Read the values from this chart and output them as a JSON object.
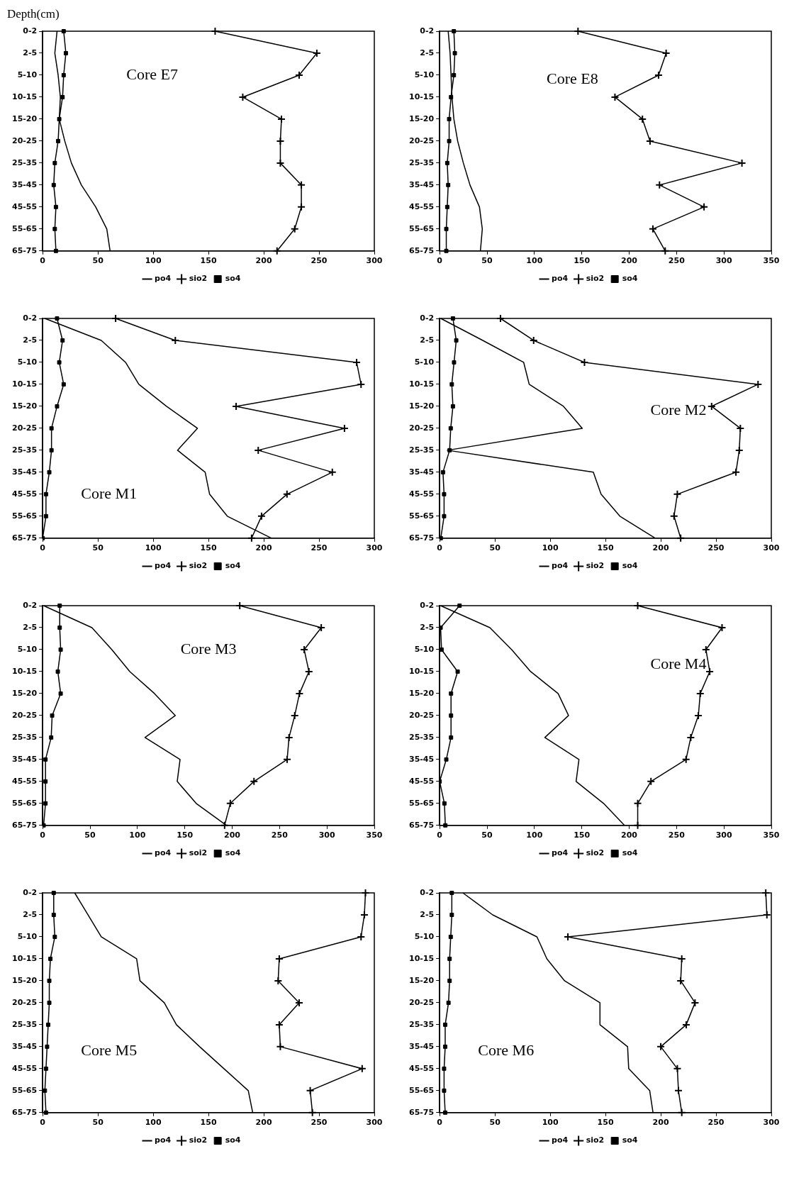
{
  "chart_data": [
    {
      "type": "line",
      "orientation": "horizontal",
      "title": "Core E7",
      "ylabel": "Depth(cm)",
      "categories": [
        "0-2",
        "2-5",
        "5-10",
        "10-15",
        "15-20",
        "20-25",
        "25-35",
        "35-45",
        "45-55",
        "55-65",
        "65-75"
      ],
      "xlim": [
        0,
        300
      ],
      "xticks": [
        0,
        50,
        100,
        150,
        200,
        250,
        300
      ],
      "grid": false,
      "legend": "bottom",
      "series": [
        {
          "name": "po4",
          "color": "#000000",
          "marker": "none",
          "values": [
            13,
            11,
            14,
            16,
            15,
            20,
            26,
            35,
            48,
            58,
            61
          ]
        },
        {
          "name": "sio2",
          "color": "#000000",
          "marker": "cross",
          "values": [
            156,
            248,
            232,
            181,
            216,
            215,
            215,
            234,
            234,
            228,
            212
          ]
        },
        {
          "name": "so4",
          "color": "#000000",
          "marker": "square",
          "values": [
            19,
            21,
            19,
            18,
            15,
            14,
            11,
            10,
            12,
            11,
            12
          ]
        }
      ]
    },
    {
      "type": "line",
      "orientation": "horizontal",
      "title": "Core E8",
      "categories": [
        "0-2",
        "2-5",
        "5-10",
        "10-15",
        "15-20",
        "20-25",
        "25-35",
        "35-45",
        "45-55",
        "55-65",
        "65-75"
      ],
      "xlim": [
        0,
        350
      ],
      "xticks": [
        0,
        50,
        100,
        150,
        200,
        250,
        300,
        350
      ],
      "grid": false,
      "legend": "bottom",
      "series": [
        {
          "name": "po4",
          "color": "#000000",
          "marker": "none",
          "values": [
            9,
            11,
            12,
            13,
            15,
            19,
            25,
            32,
            42,
            45,
            43
          ]
        },
        {
          "name": "sio2",
          "color": "#000000",
          "marker": "cross",
          "values": [
            146,
            239,
            231,
            185,
            214,
            222,
            319,
            232,
            279,
            225,
            238
          ]
        },
        {
          "name": "so4",
          "color": "#000000",
          "marker": "square",
          "values": [
            15,
            16,
            15,
            12,
            10,
            10,
            8,
            9,
            8,
            7,
            7
          ]
        }
      ]
    },
    {
      "type": "line",
      "orientation": "horizontal",
      "title": "Core M1",
      "categories": [
        "0-2",
        "2-5",
        "5-10",
        "10-15",
        "15-20",
        "20-25",
        "25-35",
        "35-45",
        "45-55",
        "55-65",
        "65-75"
      ],
      "xlim": [
        0,
        300
      ],
      "xticks": [
        0,
        50,
        100,
        150,
        200,
        250,
        300
      ],
      "grid": false,
      "legend": "bottom",
      "series": [
        {
          "name": "po4",
          "color": "#000000",
          "marker": "none",
          "values": [
            2,
            53,
            75,
            87,
            112,
            140,
            122,
            147,
            151,
            167,
            207
          ]
        },
        {
          "name": "sio2",
          "color": "#000000",
          "marker": "cross",
          "values": [
            66,
            120,
            284,
            288,
            175,
            273,
            195,
            262,
            221,
            198,
            189
          ]
        },
        {
          "name": "so4",
          "color": "#000000",
          "marker": "square",
          "values": [
            13,
            18,
            15,
            19,
            13,
            8,
            8,
            6,
            3,
            3,
            0
          ]
        }
      ]
    },
    {
      "type": "line",
      "orientation": "horizontal",
      "title": "Core M2",
      "categories": [
        "0-2",
        "2-5",
        "5-10",
        "10-15",
        "15-20",
        "20-25",
        "25-35",
        "35-45",
        "45-55",
        "55-65",
        "65-75"
      ],
      "xlim": [
        0,
        300
      ],
      "xticks": [
        0,
        50,
        100,
        150,
        200,
        250,
        300
      ],
      "grid": false,
      "legend": "bottom",
      "series": [
        {
          "name": "po4",
          "color": "#000000",
          "marker": "none",
          "values": [
            1,
            39,
            76,
            81,
            112,
            129,
            7,
            139,
            146,
            163,
            195
          ]
        },
        {
          "name": "sio2",
          "color": "#000000",
          "marker": "cross",
          "values": [
            55,
            85,
            131,
            288,
            246,
            272,
            271,
            268,
            215,
            212,
            218
          ]
        },
        {
          "name": "so4",
          "color": "#000000",
          "marker": "square",
          "values": [
            12,
            15,
            13,
            11,
            12,
            10,
            9,
            3,
            4,
            4,
            1
          ]
        }
      ]
    },
    {
      "type": "line",
      "orientation": "horizontal",
      "title": "Core M3",
      "categories": [
        "0-2",
        "2-5",
        "5-10",
        "10-15",
        "15-20",
        "20-25",
        "25-35",
        "35-45",
        "45-55",
        "55-65",
        "65-75"
      ],
      "xlim": [
        0,
        350
      ],
      "xticks": [
        0,
        50,
        100,
        150,
        200,
        250,
        300,
        350
      ],
      "grid": false,
      "legend": "bottom",
      "series": [
        {
          "name": "po4",
          "color": "#000000",
          "marker": "none",
          "values": [
            1,
            52,
            73,
            92,
            118,
            140,
            108,
            145,
            142,
            162,
            194
          ]
        },
        {
          "name": "soi2",
          "color": "#000000",
          "marker": "cross",
          "values": [
            208,
            294,
            276,
            281,
            271,
            266,
            260,
            258,
            223,
            198,
            192
          ]
        },
        {
          "name": "so4",
          "color": "#000000",
          "marker": "square",
          "values": [
            18,
            18,
            19,
            16,
            19,
            10,
            9,
            3,
            3,
            3,
            1
          ]
        }
      ]
    },
    {
      "type": "line",
      "orientation": "horizontal",
      "title": "Core M4",
      "categories": [
        "0-2",
        "2-5",
        "5-10",
        "10-15",
        "15-20",
        "20-25",
        "25-35",
        "35-45",
        "45-55",
        "55-65",
        "65-75"
      ],
      "xlim": [
        0,
        350
      ],
      "xticks": [
        0,
        50,
        100,
        150,
        200,
        250,
        300,
        350
      ],
      "grid": false,
      "legend": "bottom",
      "series": [
        {
          "name": "po4",
          "color": "#000000",
          "marker": "none",
          "values": [
            1,
            53,
            76,
            96,
            125,
            136,
            111,
            147,
            144,
            173,
            195
          ]
        },
        {
          "name": "sio2",
          "color": "#000000",
          "marker": "cross",
          "values": [
            209,
            298,
            281,
            285,
            275,
            273,
            265,
            260,
            223,
            209,
            209
          ]
        },
        {
          "name": "so4",
          "color": "#000000",
          "marker": "square",
          "values": [
            21,
            1,
            2,
            19,
            12,
            12,
            12,
            7,
            0,
            5,
            6
          ]
        }
      ]
    },
    {
      "type": "line",
      "orientation": "horizontal",
      "title": "Core M5",
      "categories": [
        "0-2",
        "2-5",
        "5-10",
        "10-15",
        "15-20",
        "20-25",
        "25-35",
        "35-45",
        "45-55",
        "55-65",
        "65-75"
      ],
      "xlim": [
        0,
        300
      ],
      "xticks": [
        0,
        50,
        100,
        150,
        200,
        250,
        300
      ],
      "grid": false,
      "legend": "bottom",
      "series": [
        {
          "name": "po4",
          "color": "#000000",
          "marker": "none",
          "values": [
            29,
            41,
            53,
            85,
            88,
            110,
            121,
            142,
            164,
            186,
            190
          ]
        },
        {
          "name": "sio2",
          "color": "#000000",
          "marker": "cross",
          "values": [
            292,
            291,
            288,
            214,
            213,
            232,
            214,
            215,
            289,
            242,
            244
          ]
        },
        {
          "name": "so4",
          "color": "#000000",
          "marker": "square",
          "values": [
            10,
            10,
            11,
            7,
            6,
            6,
            5,
            4,
            3,
            2,
            3
          ]
        }
      ]
    },
    {
      "type": "line",
      "orientation": "horizontal",
      "title": "Core M6",
      "categories": [
        "0-2",
        "2-5",
        "5-10",
        "10-15",
        "15-20",
        "20-25",
        "25-35",
        "35-45",
        "45-55",
        "55-65",
        "65-75"
      ],
      "xlim": [
        0,
        300
      ],
      "xticks": [
        0,
        50,
        100,
        150,
        200,
        250,
        300
      ],
      "grid": false,
      "legend": "bottom",
      "series": [
        {
          "name": "po4",
          "color": "#000000",
          "marker": "none",
          "values": [
            21,
            48,
            88,
            97,
            113,
            145,
            145,
            170,
            171,
            190,
            193
          ]
        },
        {
          "name": "sio2",
          "color": "#000000",
          "marker": "cross",
          "values": [
            295,
            296,
            116,
            219,
            218,
            231,
            223,
            200,
            215,
            216,
            219
          ]
        },
        {
          "name": "so4",
          "color": "#000000",
          "marker": "square",
          "values": [
            11,
            11,
            10,
            9,
            9,
            8,
            5,
            5,
            4,
            4,
            5
          ]
        }
      ]
    }
  ]
}
